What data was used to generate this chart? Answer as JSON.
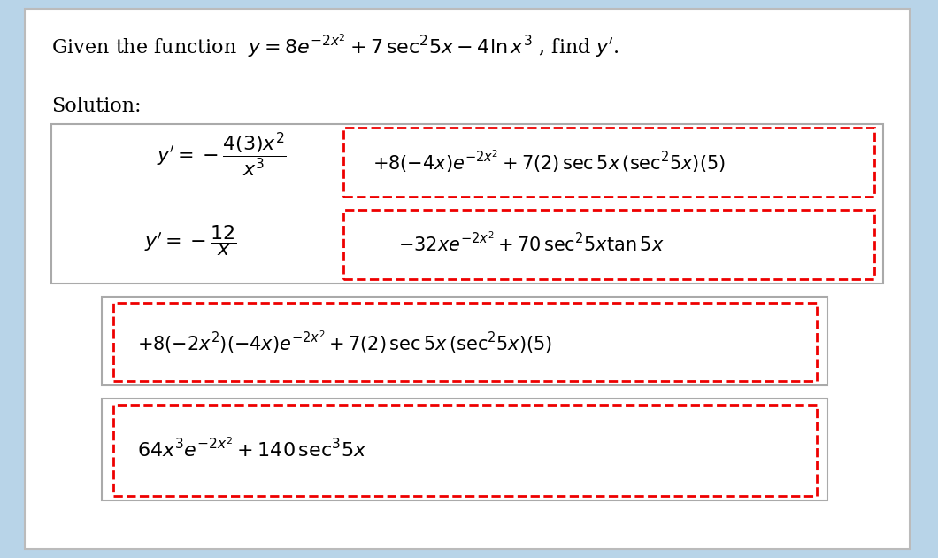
{
  "bg_color": "#b8d4e8",
  "panel_color": "#ffffff",
  "red_dash_color": "#ee0000",
  "gray_border": "#999999",
  "text_color": "#000000",
  "title_line1": "Given the function  $y = 8e^{-2x^2} + 7\\,\\mathrm{sec}^2 5x - 4\\ln x^3$ , find $y'$.",
  "solution_label": "Solution:",
  "eq1_left": "$y' = -\\dfrac{4(3)x^2}{x^3}$",
  "eq1_right": "$+8(-4x)e^{-2x^2} + 7(2)\\,\\mathrm{sec}\\,5x\\,(\\mathrm{sec}^2 5x)(5)$",
  "eq2_left": "$y' = -\\dfrac{12}{x}$",
  "eq2_right": "$-32xe^{-2x^2} + 70\\,\\mathrm{sec}^2 5x\\tan 5x$",
  "eq3": "$+8(-2x^2)(-4x)e^{-2x^2} + 7(2)\\,\\mathrm{sec}\\,5x\\,(\\mathrm{sec}^2 5x)(5)$",
  "eq4": "$64x^3e^{-2x^2} + 140\\,\\mathrm{sec}^3 5x$",
  "fontsize_title": 16,
  "fontsize_solution": 16,
  "fontsize_eq": 16
}
